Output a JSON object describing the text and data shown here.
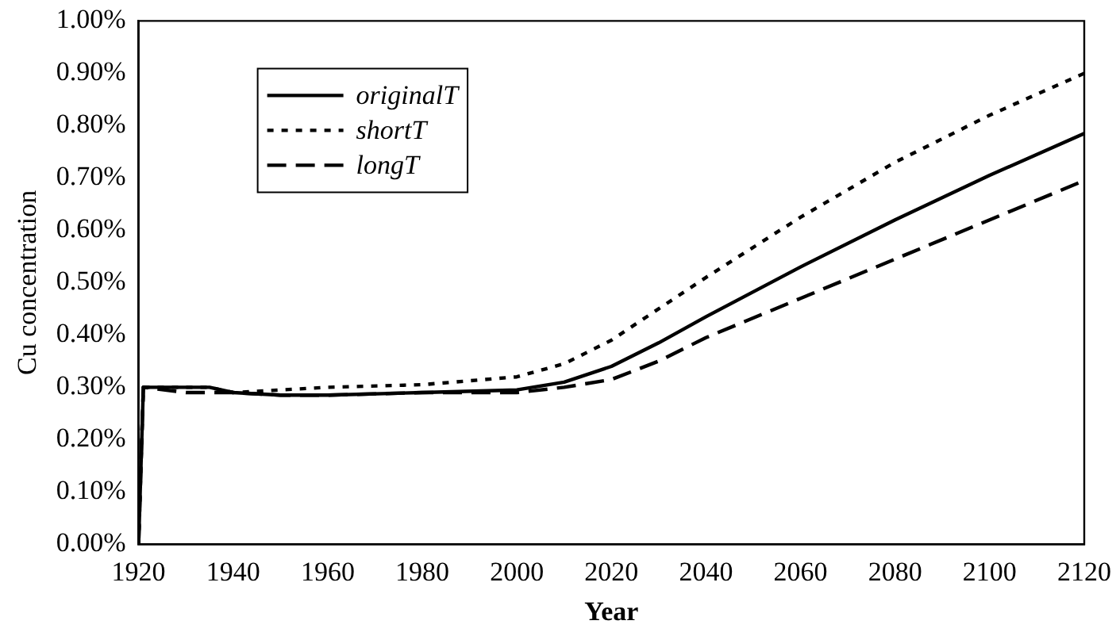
{
  "chart_data": {
    "type": "line",
    "xlabel": "Year",
    "ylabel": "Cu concentration",
    "x": [
      1920,
      1921,
      1930,
      1935,
      1940,
      1950,
      1960,
      1980,
      2000,
      2010,
      2020,
      2030,
      2040,
      2060,
      2080,
      2100,
      2120
    ],
    "series": [
      {
        "name": "originalT",
        "color": "#000000",
        "line_style": "solid",
        "values": [
          0,
          0.3,
          0.3,
          0.3,
          0.29,
          0.285,
          0.285,
          0.29,
          0.295,
          0.31,
          0.34,
          0.385,
          0.435,
          0.53,
          0.62,
          0.705,
          0.785
        ]
      },
      {
        "name": "shortT",
        "color": "#000000",
        "line_style": "dotted",
        "values": [
          0,
          0.3,
          0.3,
          0.3,
          0.29,
          0.295,
          0.3,
          0.305,
          0.32,
          0.345,
          0.39,
          0.45,
          0.51,
          0.625,
          0.73,
          0.82,
          0.9
        ]
      },
      {
        "name": "longT",
        "color": "#000000",
        "line_style": "dashed",
        "values": [
          0,
          0.3,
          0.29,
          0.29,
          0.29,
          0.285,
          0.285,
          0.29,
          0.29,
          0.3,
          0.315,
          0.35,
          0.395,
          0.47,
          0.545,
          0.62,
          0.695
        ]
      }
    ],
    "xlim": [
      1920,
      2120
    ],
    "xticks": [
      1920,
      1940,
      1960,
      1980,
      2000,
      2020,
      2040,
      2060,
      2080,
      2100,
      2120
    ],
    "ylim": [
      0,
      1
    ],
    "yticks": [
      {
        "value": 0,
        "label": "0.00%"
      },
      {
        "value": 0.1,
        "label": "0.10%"
      },
      {
        "value": 0.2,
        "label": "0.20%"
      },
      {
        "value": 0.3,
        "label": "0.30%"
      },
      {
        "value": 0.4,
        "label": "0.40%"
      },
      {
        "value": 0.5,
        "label": "0.50%"
      },
      {
        "value": 0.6,
        "label": "0.60%"
      },
      {
        "value": 0.7,
        "label": "0.70%"
      },
      {
        "value": 0.8,
        "label": "0.80%"
      },
      {
        "value": 0.9,
        "label": "0.90%"
      },
      {
        "value": 1,
        "label": "1.00%"
      }
    ],
    "grid": false,
    "legend": "top left",
    "marker": "none"
  }
}
